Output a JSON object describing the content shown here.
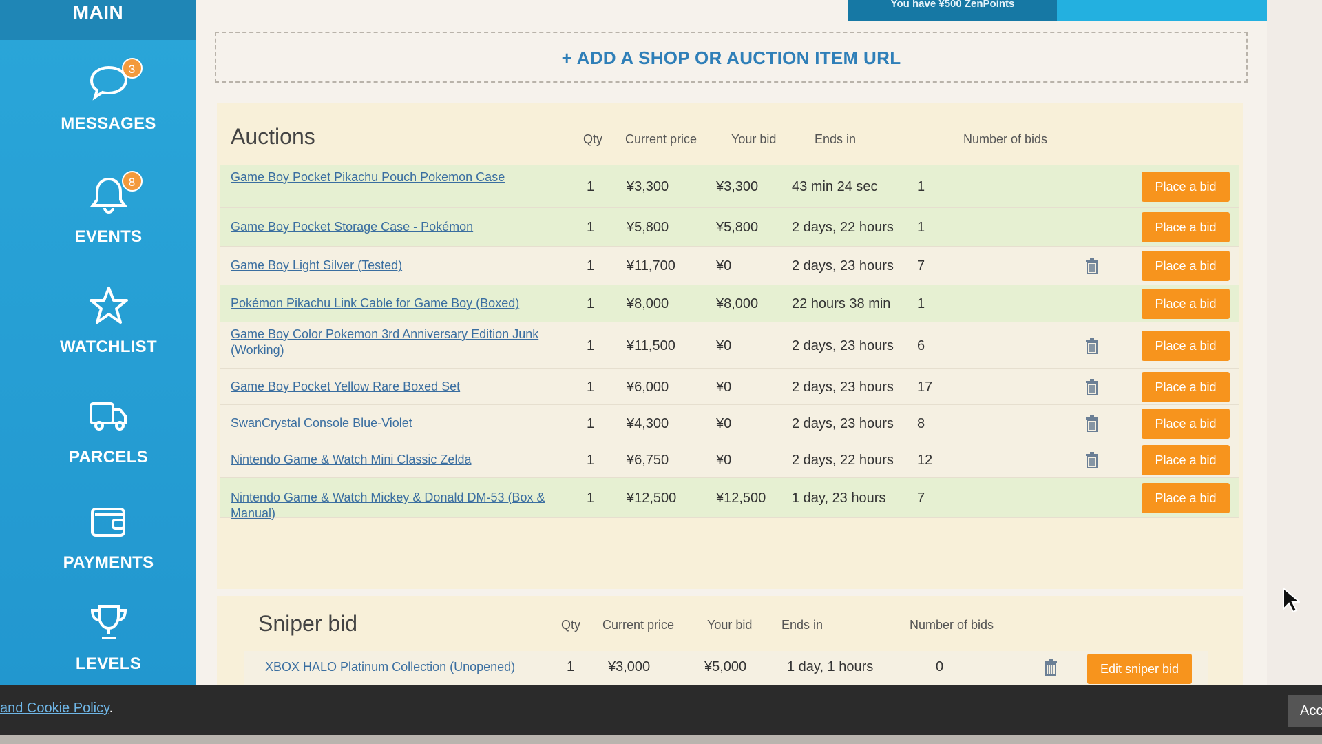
{
  "sidebar": {
    "top_label": "MAIN",
    "items": [
      {
        "label": "MESSAGES",
        "icon": "chat-bubble-icon",
        "badge": "3"
      },
      {
        "label": "EVENTS",
        "icon": "bell-icon",
        "badge": "8"
      },
      {
        "label": "WATCHLIST",
        "icon": "star-icon"
      },
      {
        "label": "PARCELS",
        "icon": "truck-icon"
      },
      {
        "label": "PAYMENTS",
        "icon": "wallet-icon"
      },
      {
        "label": "LEVELS",
        "icon": "trophy-icon"
      }
    ]
  },
  "header": {
    "points_text": "You have ¥500 ZenPoints"
  },
  "add_url": {
    "label": "+ ADD A SHOP OR AUCTION ITEM URL"
  },
  "auctions": {
    "title": "Auctions",
    "columns": {
      "qty": "Qty",
      "current_price": "Current price",
      "your_bid": "Your bid",
      "ends_in": "Ends in",
      "num_bids": "Number of bids"
    },
    "rows": [
      {
        "title": "Game Boy Pocket Pikachu Pouch Pokemon Case",
        "qty": "1",
        "price": "¥3,300",
        "bid": "¥3,300",
        "ends": "43 min 24 sec",
        "bids": "1",
        "button": "Place a bid"
      },
      {
        "title": "Game Boy Pocket Storage Case - Pokémon",
        "qty": "1",
        "price": "¥5,800",
        "bid": "¥5,800",
        "ends": "2 days, 22 hours",
        "bids": "1",
        "button": "Place a bid"
      },
      {
        "title": "Game Boy Light Silver (Tested)",
        "qty": "1",
        "price": "¥11,700",
        "bid": "¥0",
        "ends": "2 days, 23 hours",
        "bids": "7",
        "button": "Place a bid"
      },
      {
        "title": "Pokémon Pikachu Link Cable for Game Boy (Boxed)",
        "qty": "1",
        "price": "¥8,000",
        "bid": "¥8,000",
        "ends": "22 hours 38 min",
        "bids": "1",
        "button": "Place a bid"
      },
      {
        "title": "Game Boy Color Pokemon 3rd Anniversary Edition Junk (Working)",
        "qty": "1",
        "price": "¥11,500",
        "bid": "¥0",
        "ends": "2 days, 23 hours",
        "bids": "6",
        "button": "Place a bid"
      },
      {
        "title": "Game Boy Pocket Yellow Rare Boxed Set",
        "qty": "1",
        "price": "¥6,000",
        "bid": "¥0",
        "ends": "2 days, 23 hours",
        "bids": "17",
        "button": "Place a bid"
      },
      {
        "title": "SwanCrystal Console Blue-Violet",
        "qty": "1",
        "price": "¥4,300",
        "bid": "¥0",
        "ends": "2 days, 23 hours",
        "bids": "8",
        "button": "Place a bid"
      },
      {
        "title": "Nintendo Game & Watch Mini Classic Zelda",
        "qty": "1",
        "price": "¥6,750",
        "bid": "¥0",
        "ends": "2 days, 22 hours",
        "bids": "12",
        "button": "Place a bid"
      },
      {
        "title": "Nintendo Game & Watch Mickey & Donald DM-53 (Box & Manual)",
        "qty": "1",
        "price": "¥12,500",
        "bid": "¥12,500",
        "ends": "1 day, 23 hours",
        "bids": "7",
        "button": "Place a bid"
      }
    ]
  },
  "sniper": {
    "title": "Sniper bid",
    "columns": {
      "qty": "Qty",
      "current_price": "Current price",
      "your_bid": "Your bid",
      "ends_in": "Ends in",
      "num_bids": "Number of bids"
    },
    "rows": [
      {
        "title": "XBOX HALO Platinum Collection (Unopened)",
        "qty": "1",
        "price": "¥3,000",
        "bid": "¥5,000",
        "ends": "1 day, 1 hours",
        "bids": "0",
        "button": "Edit sniper bid"
      }
    ]
  },
  "cookie": {
    "link_text": "and Cookie Policy",
    "suffix": ".",
    "accept_label": "Acc"
  },
  "colors": {
    "sidebar": "#2aa6d9",
    "button": "#f7941d",
    "link": "#3a6ea0",
    "highlight_row": "#e6f0d2"
  }
}
